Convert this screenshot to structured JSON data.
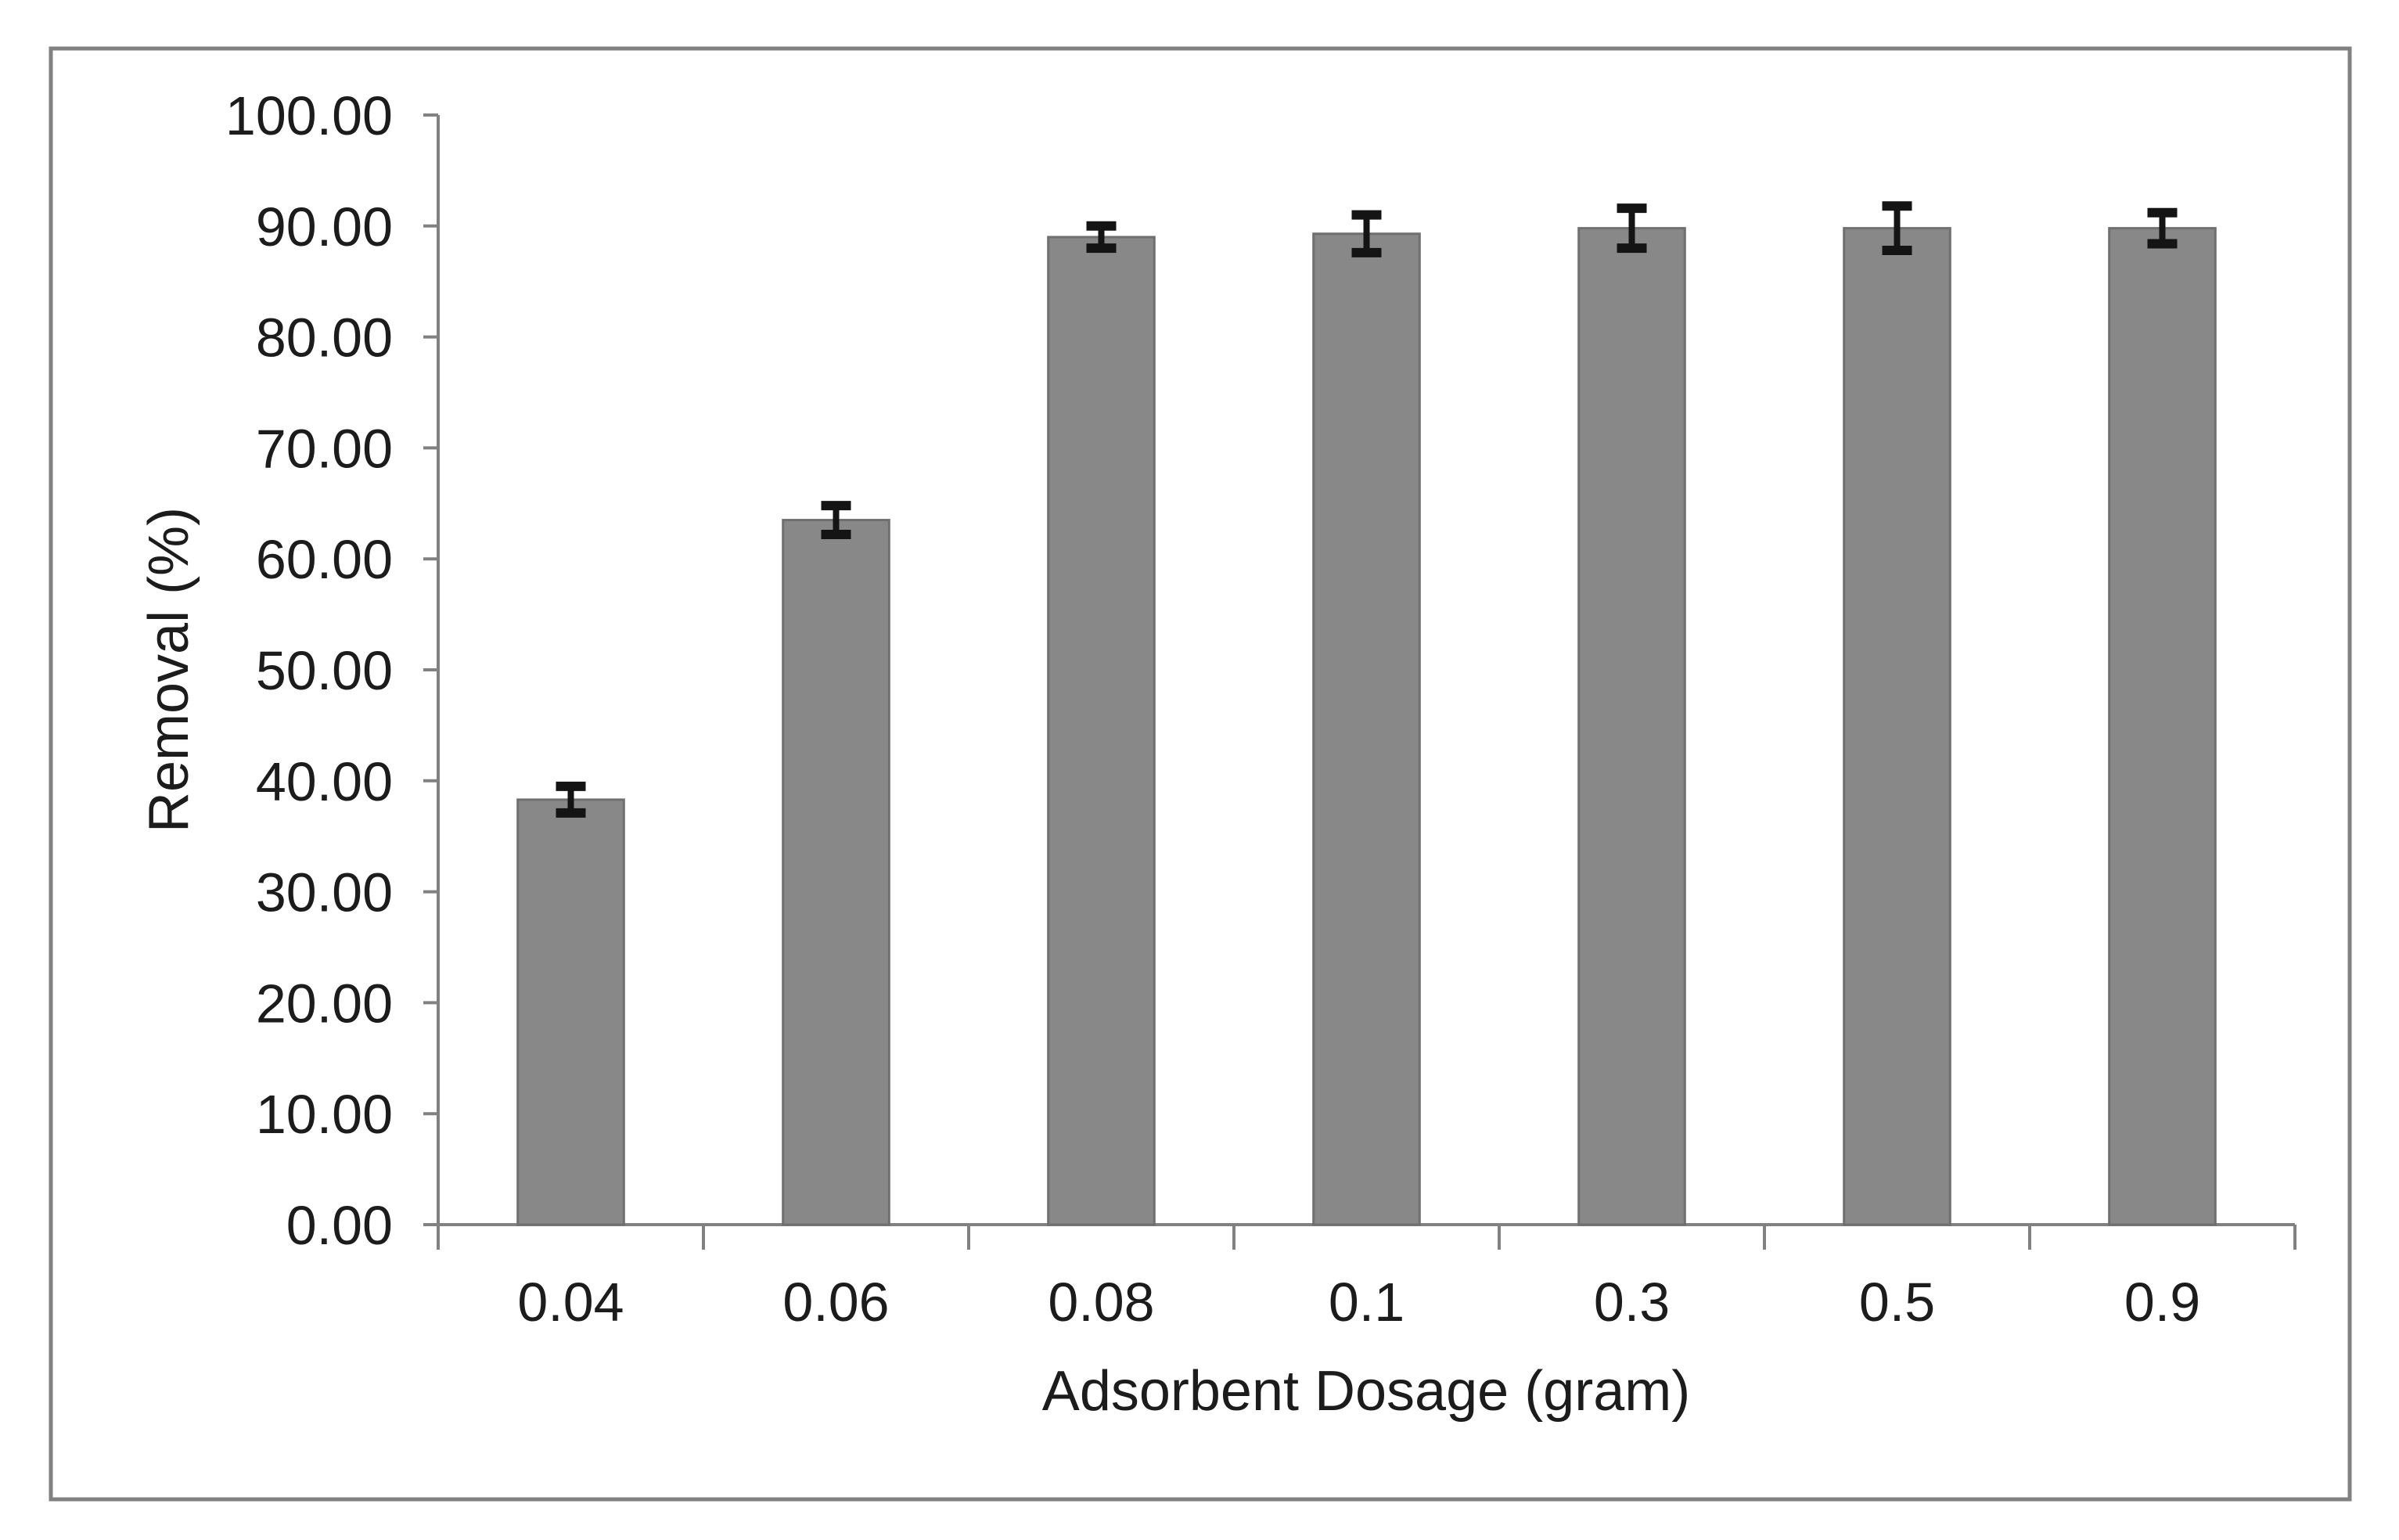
{
  "chart_data": {
    "type": "bar",
    "title": "",
    "xlabel": "Adsorbent Dosage (gram)",
    "ylabel": "Removal (%)",
    "categories": [
      "0.04",
      "0.06",
      "0.08",
      "0.1",
      "0.3",
      "0.5",
      "0.9"
    ],
    "series": [
      {
        "name": "Removal (%)",
        "values": [
          38.3,
          63.5,
          89.0,
          89.3,
          89.8,
          89.8,
          89.8
        ],
        "error_bars": [
          1.2,
          1.3,
          1.0,
          1.7,
          1.8,
          2.0,
          1.4
        ]
      }
    ],
    "ylim": [
      0,
      100
    ],
    "ytick_step": 10,
    "ytick_labels": [
      "0.00",
      "10.00",
      "20.00",
      "30.00",
      "40.00",
      "50.00",
      "60.00",
      "70.00",
      "80.00",
      "90.00",
      "100.00"
    ],
    "grid": false,
    "legend": false,
    "colors": {
      "bar_fill": "#888888",
      "bar_border": "#6f6f6f",
      "error_bar": "#141414",
      "axis_line": "#818181",
      "outer_border": "#818181",
      "text": "#1c1c1c",
      "background": "#ffffff"
    }
  }
}
